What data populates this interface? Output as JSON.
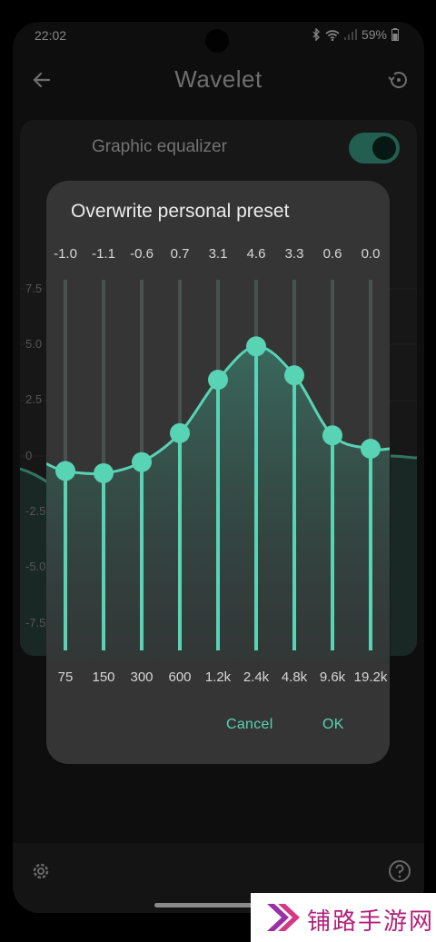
{
  "status_bar": {
    "time": "22:02",
    "battery": "59%"
  },
  "app_bar": {
    "title": "Wavelet"
  },
  "equalizer_card": {
    "title": "Graphic equalizer",
    "toggle_on": true,
    "axis_labels": [
      "7.5",
      "5.0",
      "2.5",
      "0",
      "-2.5",
      "-5.0",
      "-7.5"
    ]
  },
  "dialog": {
    "title": "Overwrite personal preset",
    "bands": [
      {
        "gain": "-1.0",
        "freq": "75"
      },
      {
        "gain": "-1.1",
        "freq": "150"
      },
      {
        "gain": "-0.6",
        "freq": "300"
      },
      {
        "gain": "0.7",
        "freq": "600"
      },
      {
        "gain": "3.1",
        "freq": "1.2k"
      },
      {
        "gain": "4.6",
        "freq": "2.4k"
      },
      {
        "gain": "3.3",
        "freq": "4.8k"
      },
      {
        "gain": "0.6",
        "freq": "9.6k"
      },
      {
        "gain": "0.0",
        "freq": "19.2k"
      }
    ],
    "cancel_label": "Cancel",
    "ok_label": "OK"
  },
  "colors": {
    "accent": "#58d3b3",
    "toggle": "#3fae92",
    "dialog_bg": "#353535"
  },
  "watermark": {
    "text": "铺路手游网"
  },
  "icons": [
    "back-arrow-icon",
    "history-icon",
    "settings-icon",
    "help-icon",
    "wifi-icon",
    "signal-icon",
    "battery-icon",
    "bluetooth-icon"
  ]
}
